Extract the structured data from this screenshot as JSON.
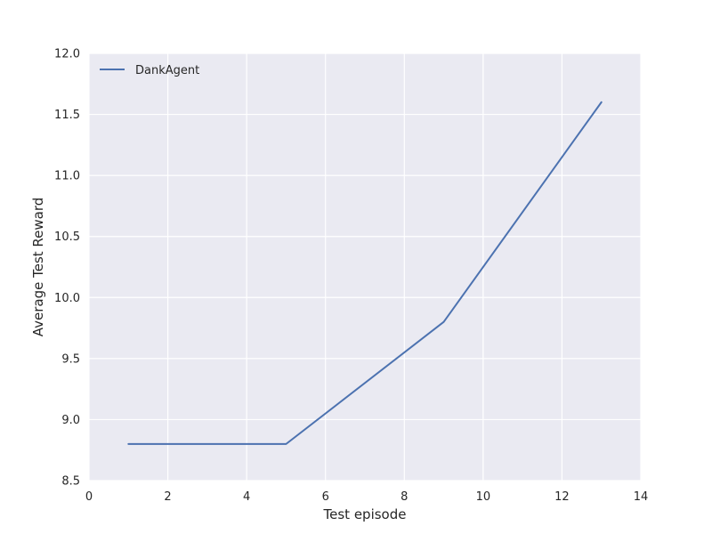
{
  "chart_data": {
    "type": "line",
    "title": "",
    "xlabel": "Test episode",
    "ylabel": "Average Test Reward",
    "xlim": [
      0,
      14
    ],
    "ylim": [
      8.5,
      12.0
    ],
    "xticks": [
      0,
      2,
      4,
      6,
      8,
      10,
      12,
      14
    ],
    "yticks": [
      8.5,
      9.0,
      9.5,
      10.0,
      10.5,
      11.0,
      11.5,
      12.0
    ],
    "xtick_labels": [
      "0",
      "2",
      "4",
      "6",
      "8",
      "10",
      "12",
      "14"
    ],
    "ytick_labels": [
      "8.5",
      "9.0",
      "9.5",
      "10.0",
      "10.5",
      "11.0",
      "11.5",
      "12.0"
    ],
    "grid": true,
    "legend_position": "top-left",
    "series": [
      {
        "name": "DankAgent",
        "color": "#4c72b0",
        "x": [
          1,
          5,
          9,
          13
        ],
        "y": [
          8.8,
          8.8,
          9.8,
          11.6
        ]
      }
    ],
    "background_color": "#eaeaf2",
    "grid_color": "#ffffff"
  }
}
